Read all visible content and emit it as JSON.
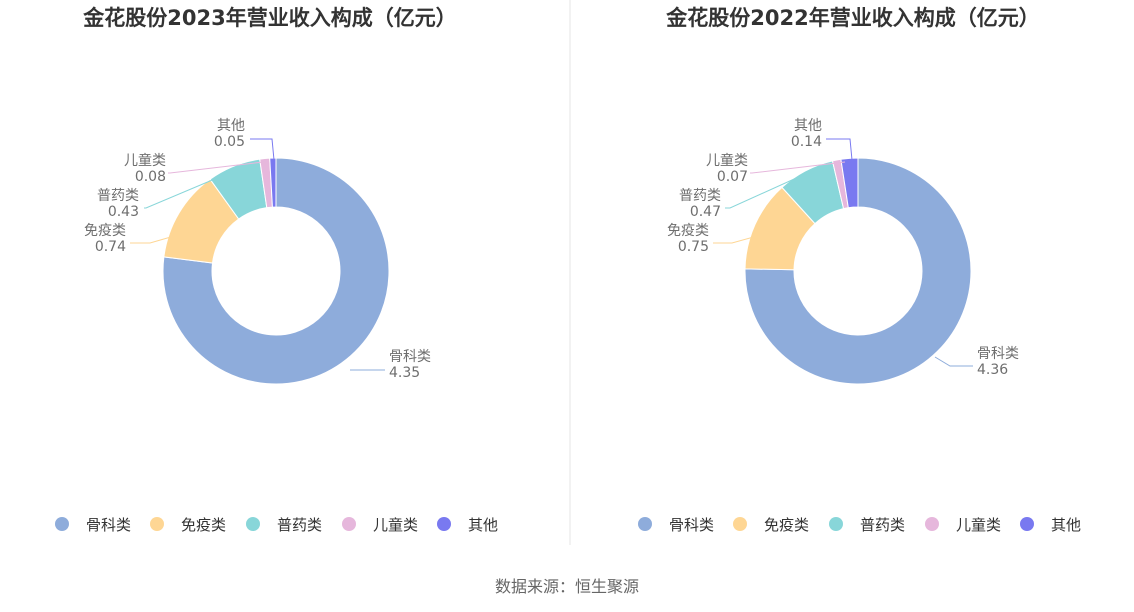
{
  "chart_data": [
    {
      "type": "pie",
      "title": "金花股份2023年营业收入构成（亿元）",
      "slices": [
        {
          "name": "骨科类",
          "value": 4.35
        },
        {
          "name": "免疫类",
          "value": 0.74
        },
        {
          "name": "普药类",
          "value": 0.43
        },
        {
          "name": "儿童类",
          "value": 0.08
        },
        {
          "name": "其他",
          "value": 0.05
        }
      ],
      "legend_position": "bottom"
    },
    {
      "type": "pie",
      "title": "金花股份2022年营业收入构成（亿元）",
      "slices": [
        {
          "name": "骨科类",
          "value": 4.36
        },
        {
          "name": "免疫类",
          "value": 0.75
        },
        {
          "name": "普药类",
          "value": 0.47
        },
        {
          "name": "儿童类",
          "value": 0.07
        },
        {
          "name": "其他",
          "value": 0.14
        }
      ],
      "legend_position": "bottom"
    }
  ],
  "colors": [
    "#8eacdb",
    "#fed694",
    "#88d6d9",
    "#e6b7dc",
    "#7979f0"
  ],
  "source_text": "数据来源：恒生聚源"
}
